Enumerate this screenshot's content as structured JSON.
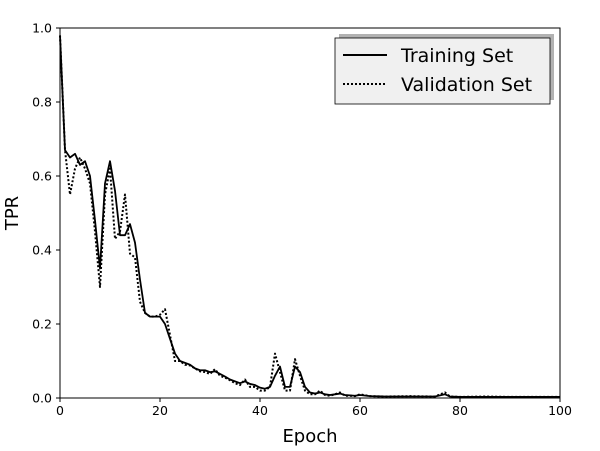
{
  "chart_data": {
    "type": "line",
    "xlabel": "Epoch",
    "ylabel": "TPR",
    "xlim": [
      0,
      100
    ],
    "ylim": [
      0,
      1.0
    ],
    "x_ticks": [
      "0",
      "20",
      "40",
      "60",
      "80",
      "100"
    ],
    "y_ticks": [
      "0.0",
      "0.2",
      "0.4",
      "0.6",
      "0.8",
      "1.0"
    ],
    "grid": false,
    "legend_position": "top-right",
    "series": [
      {
        "name": "Training Set",
        "line_style": "solid",
        "color": "#000000",
        "points": [
          [
            0,
            0.98
          ],
          [
            1,
            0.67
          ],
          [
            2,
            0.65
          ],
          [
            3,
            0.66
          ],
          [
            4,
            0.63
          ],
          [
            5,
            0.64
          ],
          [
            6,
            0.6
          ],
          [
            7,
            0.48
          ],
          [
            8,
            0.35
          ],
          [
            9,
            0.58
          ],
          [
            10,
            0.64
          ],
          [
            11,
            0.56
          ],
          [
            12,
            0.44
          ],
          [
            13,
            0.44
          ],
          [
            14,
            0.47
          ],
          [
            15,
            0.42
          ],
          [
            16,
            0.32
          ],
          [
            17,
            0.23
          ],
          [
            18,
            0.22
          ],
          [
            19,
            0.22
          ],
          [
            20,
            0.22
          ],
          [
            21,
            0.2
          ],
          [
            22,
            0.16
          ],
          [
            23,
            0.12
          ],
          [
            24,
            0.1
          ],
          [
            25,
            0.095
          ],
          [
            26,
            0.09
          ],
          [
            27,
            0.08
          ],
          [
            28,
            0.075
          ],
          [
            29,
            0.075
          ],
          [
            30,
            0.07
          ],
          [
            31,
            0.072
          ],
          [
            32,
            0.065
          ],
          [
            33,
            0.058
          ],
          [
            34,
            0.05
          ],
          [
            35,
            0.045
          ],
          [
            36,
            0.04
          ],
          [
            37,
            0.045
          ],
          [
            38,
            0.038
          ],
          [
            39,
            0.035
          ],
          [
            40,
            0.028
          ],
          [
            41,
            0.025
          ],
          [
            42,
            0.03
          ],
          [
            43,
            0.06
          ],
          [
            44,
            0.085
          ],
          [
            45,
            0.03
          ],
          [
            46,
            0.03
          ],
          [
            47,
            0.085
          ],
          [
            48,
            0.07
          ],
          [
            49,
            0.03
          ],
          [
            50,
            0.015
          ],
          [
            51,
            0.012
          ],
          [
            52,
            0.015
          ],
          [
            53,
            0.01
          ],
          [
            54,
            0.008
          ],
          [
            55,
            0.01
          ],
          [
            56,
            0.012
          ],
          [
            57,
            0.008
          ],
          [
            58,
            0.007
          ],
          [
            59,
            0.006
          ],
          [
            60,
            0.008
          ],
          [
            62,
            0.005
          ],
          [
            65,
            0.004
          ],
          [
            70,
            0.004
          ],
          [
            75,
            0.004
          ],
          [
            77,
            0.01
          ],
          [
            78,
            0.004
          ],
          [
            80,
            0.003
          ],
          [
            85,
            0.003
          ],
          [
            90,
            0.003
          ],
          [
            95,
            0.003
          ],
          [
            100,
            0.003
          ]
        ]
      },
      {
        "name": "Validation Set",
        "line_style": "dotted",
        "color": "#000000",
        "points": [
          [
            0,
            0.98
          ],
          [
            1,
            0.67
          ],
          [
            2,
            0.55
          ],
          [
            3,
            0.62
          ],
          [
            4,
            0.65
          ],
          [
            5,
            0.62
          ],
          [
            6,
            0.58
          ],
          [
            7,
            0.45
          ],
          [
            8,
            0.3
          ],
          [
            9,
            0.55
          ],
          [
            10,
            0.62
          ],
          [
            11,
            0.43
          ],
          [
            12,
            0.45
          ],
          [
            13,
            0.55
          ],
          [
            14,
            0.39
          ],
          [
            15,
            0.38
          ],
          [
            16,
            0.26
          ],
          [
            17,
            0.23
          ],
          [
            18,
            0.22
          ],
          [
            19,
            0.22
          ],
          [
            20,
            0.225
          ],
          [
            21,
            0.24
          ],
          [
            22,
            0.17
          ],
          [
            23,
            0.1
          ],
          [
            24,
            0.1
          ],
          [
            25,
            0.09
          ],
          [
            26,
            0.088
          ],
          [
            27,
            0.08
          ],
          [
            28,
            0.072
          ],
          [
            29,
            0.07
          ],
          [
            30,
            0.065
          ],
          [
            31,
            0.078
          ],
          [
            32,
            0.06
          ],
          [
            33,
            0.055
          ],
          [
            34,
            0.048
          ],
          [
            35,
            0.04
          ],
          [
            36,
            0.035
          ],
          [
            37,
            0.05
          ],
          [
            38,
            0.03
          ],
          [
            39,
            0.03
          ],
          [
            40,
            0.02
          ],
          [
            41,
            0.02
          ],
          [
            42,
            0.03
          ],
          [
            43,
            0.12
          ],
          [
            44,
            0.07
          ],
          [
            45,
            0.02
          ],
          [
            46,
            0.02
          ],
          [
            47,
            0.105
          ],
          [
            48,
            0.06
          ],
          [
            49,
            0.02
          ],
          [
            50,
            0.01
          ],
          [
            51,
            0.01
          ],
          [
            52,
            0.02
          ],
          [
            53,
            0.008
          ],
          [
            54,
            0.006
          ],
          [
            55,
            0.01
          ],
          [
            56,
            0.015
          ],
          [
            57,
            0.006
          ],
          [
            58,
            0.006
          ],
          [
            59,
            0.005
          ],
          [
            60,
            0.01
          ],
          [
            62,
            0.005
          ],
          [
            65,
            0.004
          ],
          [
            70,
            0.005
          ],
          [
            75,
            0.004
          ],
          [
            77,
            0.015
          ],
          [
            78,
            0.004
          ],
          [
            80,
            0.003
          ],
          [
            85,
            0.004
          ],
          [
            90,
            0.003
          ],
          [
            95,
            0.003
          ],
          [
            100,
            0.003
          ]
        ]
      }
    ]
  }
}
